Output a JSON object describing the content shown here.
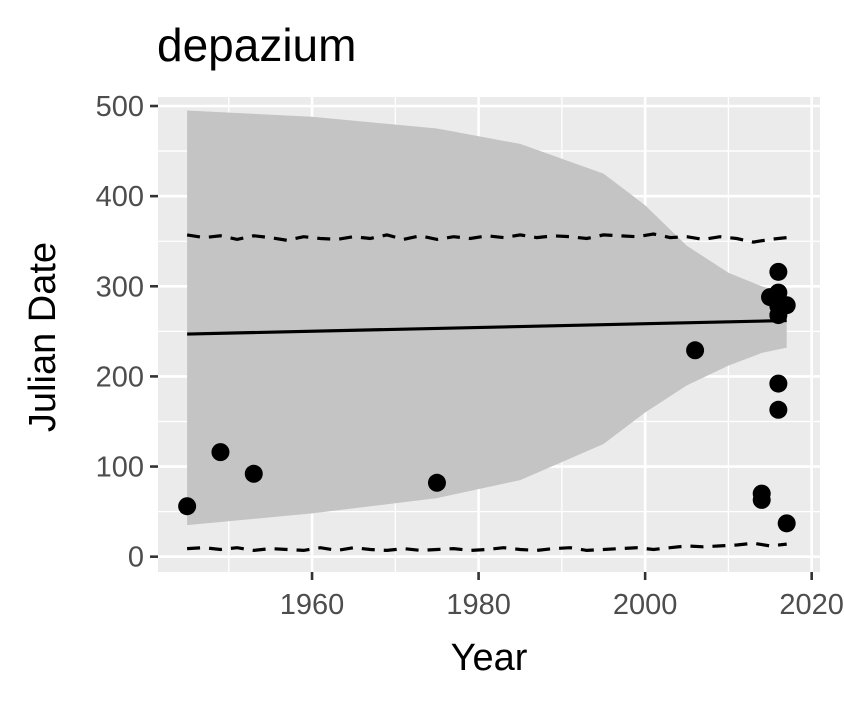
{
  "chart_data": {
    "type": "scatter",
    "title": "depazium",
    "xlabel": "Year",
    "ylabel": "Julian Date",
    "xlim": [
      1941.5,
      2021
    ],
    "ylim": [
      -17,
      510
    ],
    "x_ticks": [
      1960,
      1980,
      2000,
      2020
    ],
    "x_tick_labels": [
      "1960",
      "1980",
      "2000",
      "2020"
    ],
    "y_ticks": [
      0,
      100,
      200,
      300,
      400,
      500
    ],
    "y_tick_labels": [
      "0",
      "100",
      "200",
      "300",
      "400",
      "500"
    ],
    "grid": true,
    "legend": "none",
    "colors": {
      "panel": "#ebebeb",
      "grid": "#ffffff",
      "ribbon": "#c4c4c4",
      "points": "#000000",
      "lines": "#000000"
    },
    "points": [
      {
        "x": 1945,
        "y": 56
      },
      {
        "x": 1949,
        "y": 116
      },
      {
        "x": 1953,
        "y": 92
      },
      {
        "x": 1975,
        "y": 82
      },
      {
        "x": 2006,
        "y": 229
      },
      {
        "x": 2014,
        "y": 70
      },
      {
        "x": 2014,
        "y": 63
      },
      {
        "x": 2015,
        "y": 288
      },
      {
        "x": 2016,
        "y": 316
      },
      {
        "x": 2016,
        "y": 293
      },
      {
        "x": 2016,
        "y": 278
      },
      {
        "x": 2016,
        "y": 268
      },
      {
        "x": 2016,
        "y": 192
      },
      {
        "x": 2016,
        "y": 163
      },
      {
        "x": 2017,
        "y": 279
      },
      {
        "x": 2017,
        "y": 37
      }
    ],
    "trend_line": {
      "x": [
        1945,
        2017
      ],
      "y": [
        247,
        262
      ]
    },
    "confidence_band": {
      "x": [
        1945,
        1960,
        1975,
        1985,
        1995,
        2000,
        2005,
        2010,
        2014,
        2017
      ],
      "upper": [
        495,
        488,
        475,
        458,
        425,
        390,
        345,
        315,
        300,
        292
      ],
      "lower": [
        35,
        48,
        65,
        85,
        125,
        160,
        190,
        212,
        226,
        232
      ]
    },
    "prediction_upper": {
      "x": [
        1945,
        1947,
        1949,
        1951,
        1953,
        1955,
        1957,
        1959,
        1961,
        1963,
        1965,
        1967,
        1969,
        1971,
        1973,
        1975,
        1977,
        1979,
        1981,
        1983,
        1985,
        1987,
        1989,
        1991,
        1993,
        1995,
        1997,
        1999,
        2001,
        2003,
        2005,
        2007,
        2009,
        2011,
        2013,
        2015,
        2017
      ],
      "y": [
        357,
        354,
        356,
        352,
        356,
        354,
        351,
        355,
        353,
        352,
        355,
        353,
        357,
        352,
        356,
        352,
        355,
        353,
        356,
        354,
        357,
        354,
        356,
        355,
        353,
        357,
        356,
        355,
        358,
        354,
        355,
        352,
        355,
        353,
        349,
        352,
        354
      ]
    },
    "prediction_lower": {
      "x": [
        1945,
        1947,
        1949,
        1951,
        1953,
        1955,
        1957,
        1959,
        1961,
        1963,
        1965,
        1967,
        1969,
        1971,
        1973,
        1975,
        1977,
        1979,
        1981,
        1983,
        1985,
        1987,
        1989,
        1991,
        1993,
        1995,
        1997,
        1999,
        2001,
        2003,
        2005,
        2007,
        2009,
        2011,
        2013,
        2015,
        2017
      ],
      "y": [
        9,
        10,
        8,
        10,
        7,
        9,
        8,
        7,
        10,
        7,
        10,
        8,
        7,
        9,
        7,
        8,
        9,
        7,
        8,
        10,
        8,
        7,
        9,
        10,
        7,
        8,
        9,
        10,
        8,
        10,
        12,
        11,
        12,
        13,
        15,
        12,
        14
      ]
    }
  }
}
